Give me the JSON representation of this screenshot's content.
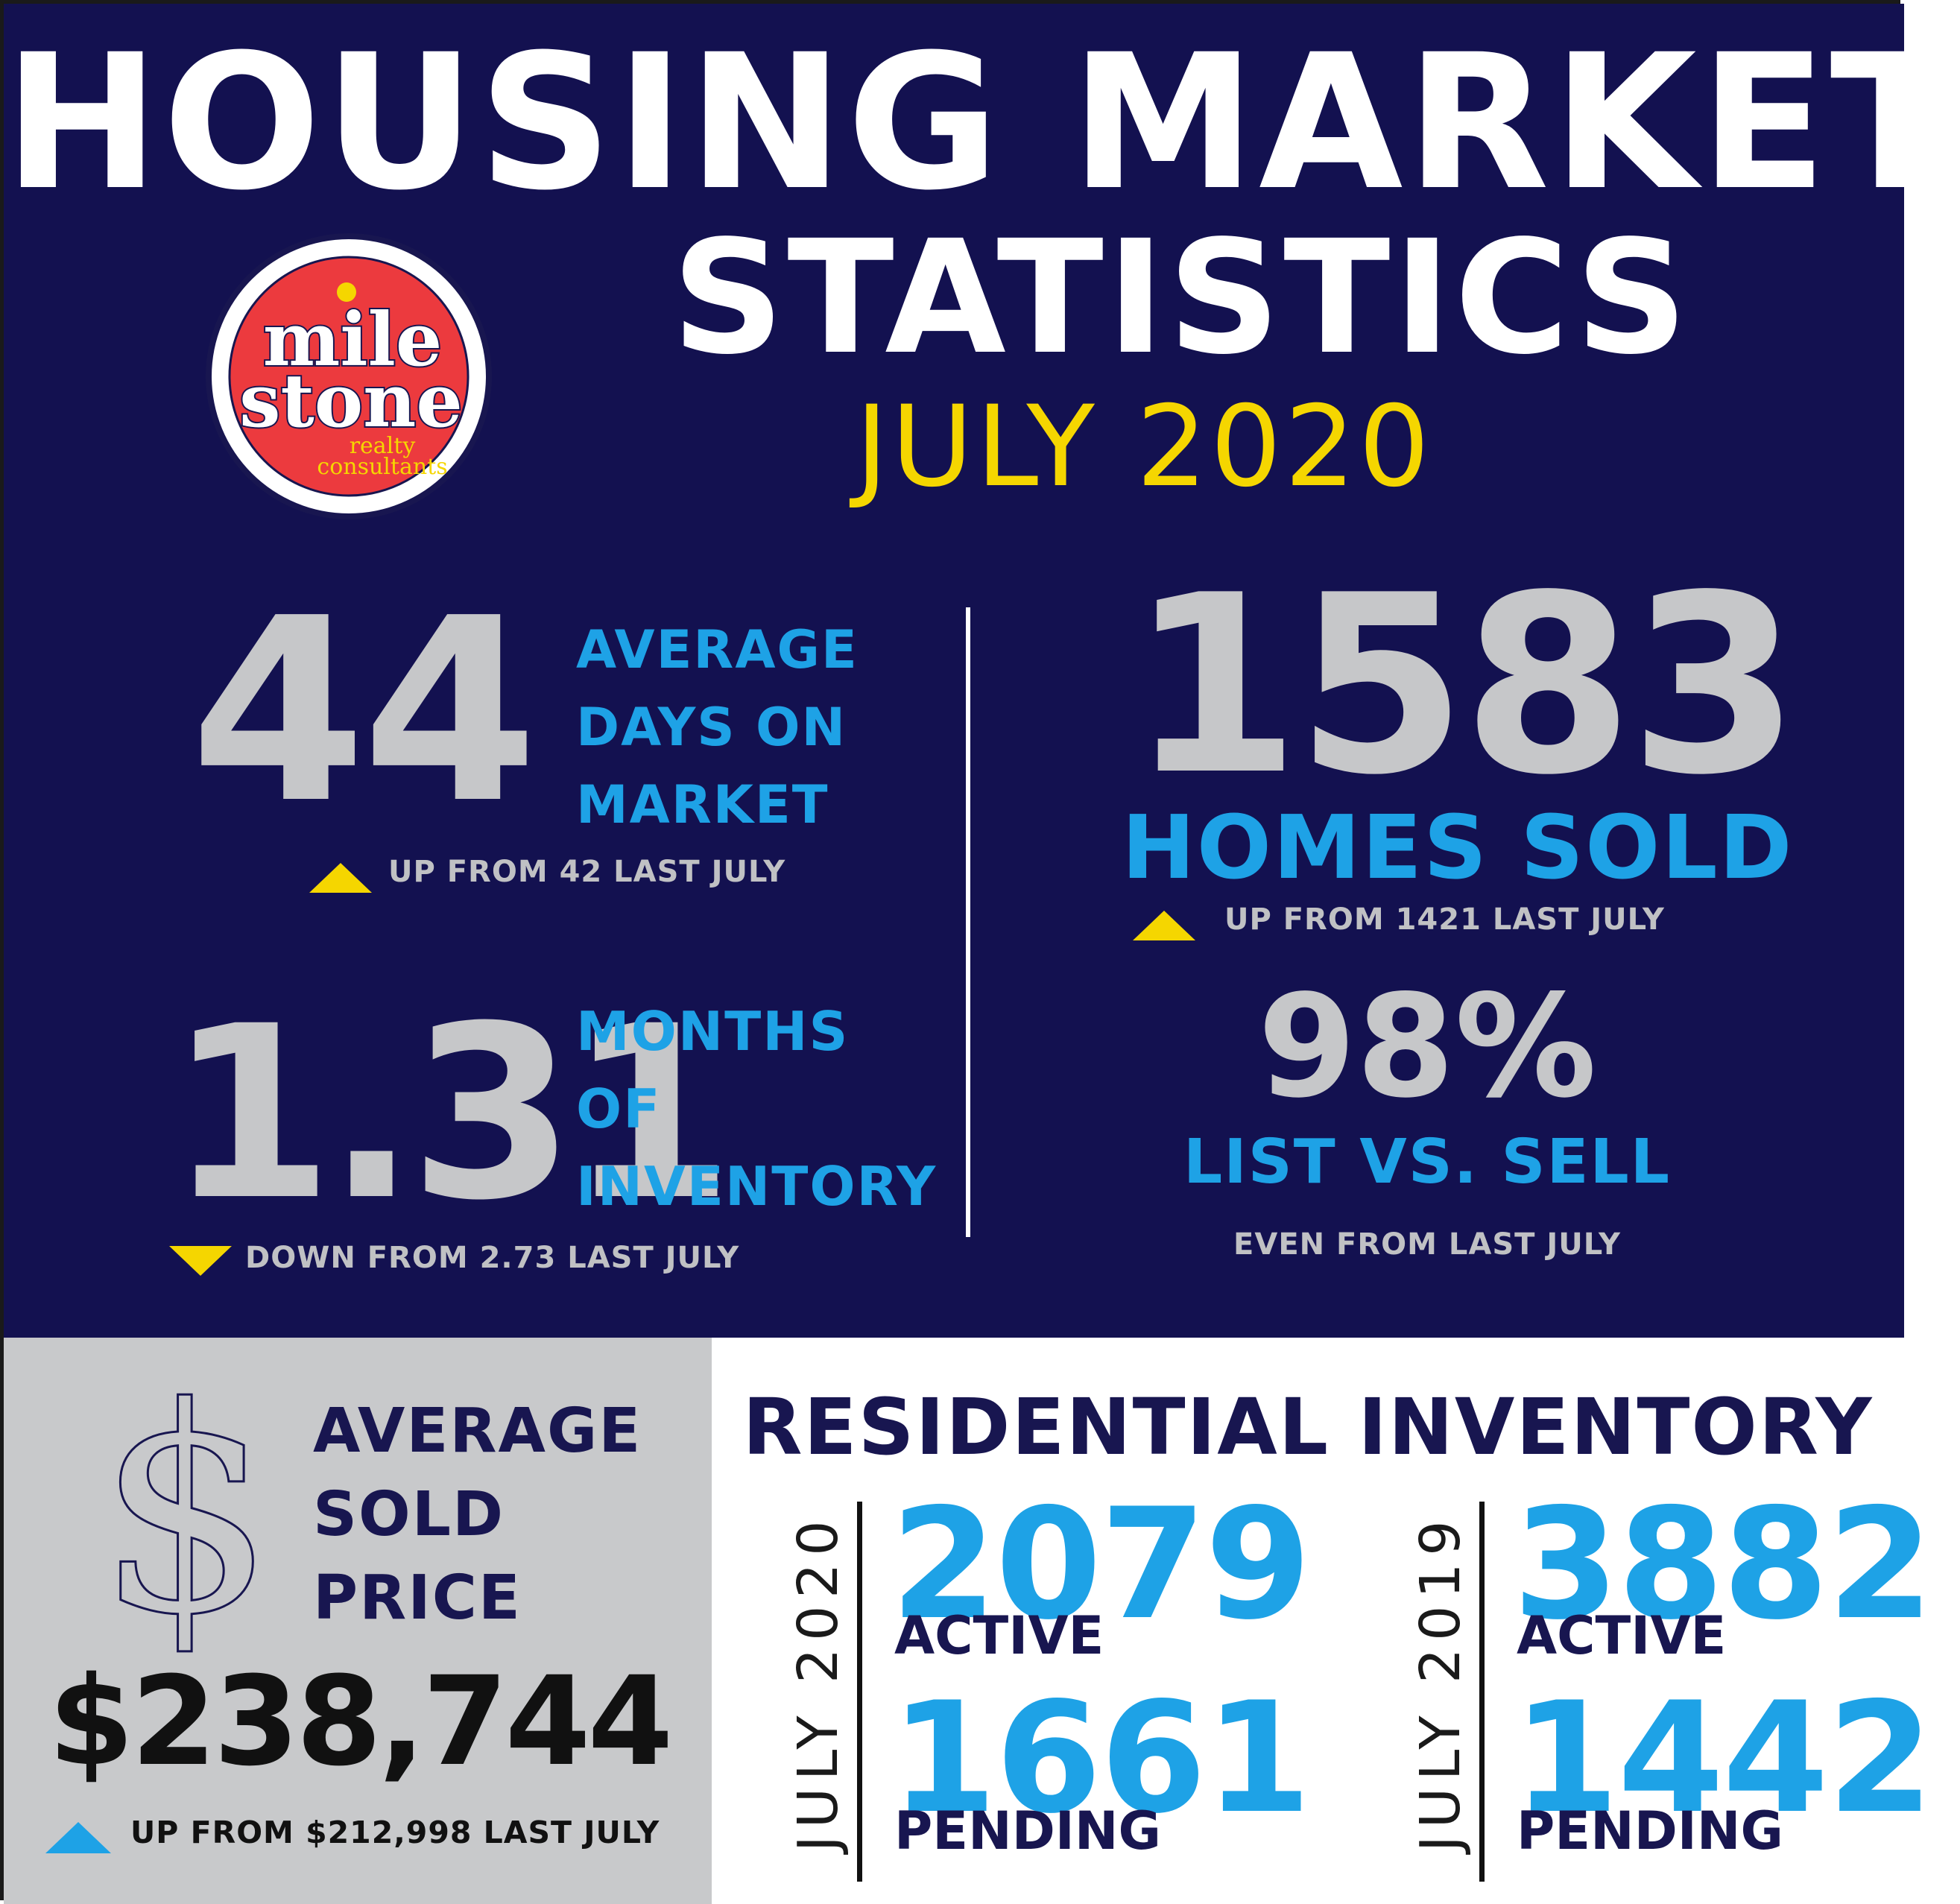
{
  "header": {
    "title_line1": "HOUSING MARKET",
    "title_line2": "STATISTICS",
    "period": "JULY 2020"
  },
  "logo": {
    "line1": "mile",
    "line2": "stone",
    "line3": "realty",
    "line4": "consultants",
    "colors": {
      "red": "#ec3a3e",
      "yellow": "#f5d600",
      "navy": "#181650"
    }
  },
  "stats": {
    "days_on_market": {
      "value": "44",
      "label_line1": "AVERAGE",
      "label_line2": "DAYS ON",
      "label_line3": "MARKET",
      "change": "UP FROM 42 LAST JULY",
      "direction": "up"
    },
    "months_inventory": {
      "value": "1.31",
      "label_line1": "MONTHS",
      "label_line2": "OF",
      "label_line3": "INVENTORY",
      "change": "DOWN FROM 2.73 LAST JULY",
      "direction": "down"
    },
    "homes_sold": {
      "value": "1583",
      "label": "HOMES SOLD",
      "change": "UP FROM 1421 LAST JULY",
      "direction": "up"
    },
    "list_vs_sell": {
      "value": "98%",
      "label": "LIST VS. SELL",
      "change": "EVEN FROM LAST JULY"
    }
  },
  "price": {
    "icon": "dollar-sign-icon",
    "label_line1": "AVERAGE",
    "label_line2": "SOLD",
    "label_line3": "PRICE",
    "value": "$238,744",
    "change": "UP FROM $212,998 LAST JULY",
    "direction": "up"
  },
  "inventory": {
    "title": "RESIDENTIAL INVENTORY",
    "periods": [
      {
        "label": "JULY 2020",
        "active": "2079",
        "active_label": "ACTIVE",
        "pending": "1661",
        "pending_label": "PENDING"
      },
      {
        "label": "JULY 2019",
        "active": "3882",
        "active_label": "ACTIVE",
        "pending": "1442",
        "pending_label": "PENDING"
      }
    ]
  },
  "colors": {
    "navy_bg": "#131150",
    "accent_blue": "#1ea2e6",
    "accent_yellow": "#f5d600",
    "stat_gray": "#c6c7c9",
    "panel_gray": "#c8c9cb"
  }
}
